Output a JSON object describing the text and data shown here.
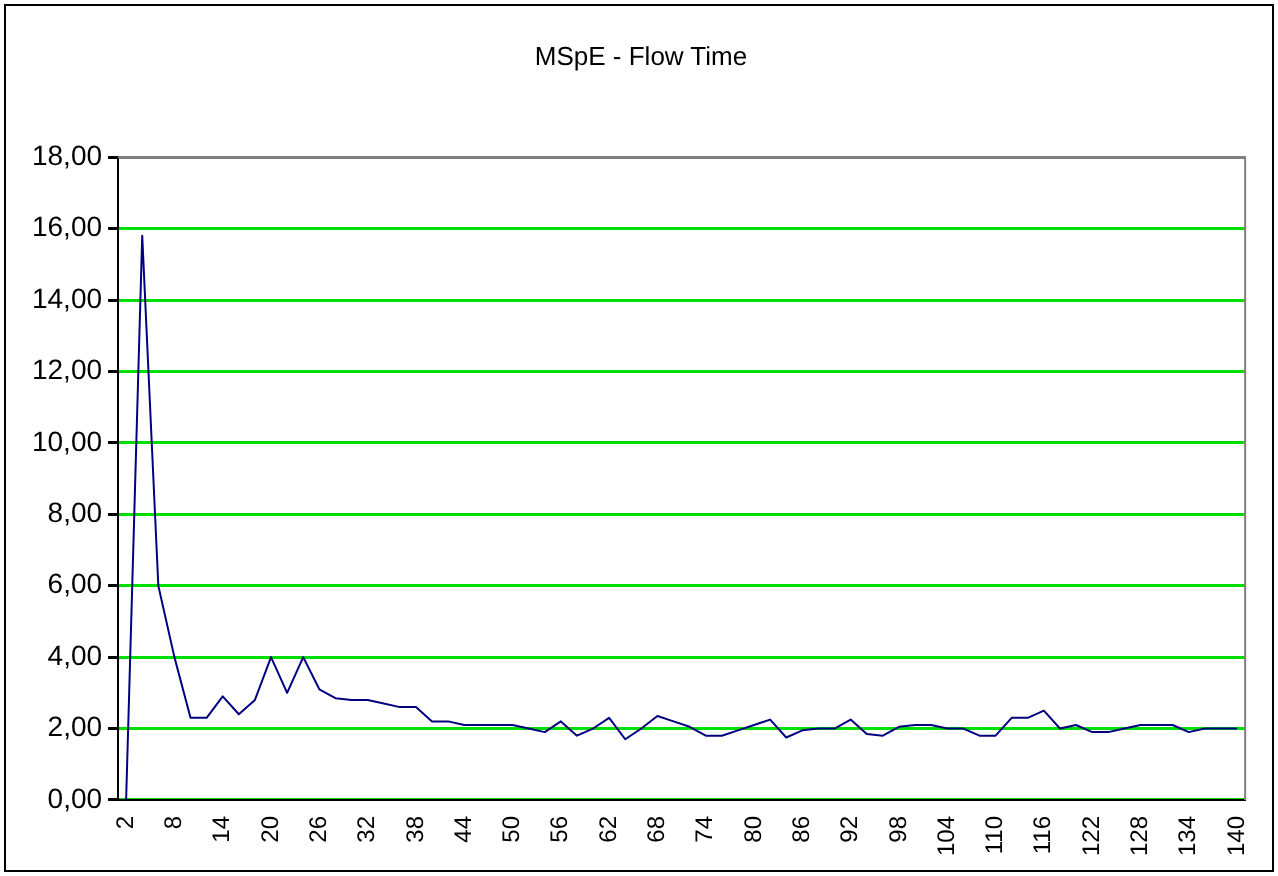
{
  "chart_data": {
    "type": "line",
    "title": "MSpE - Flow Time",
    "categories": [
      "2",
      null,
      null,
      "8",
      null,
      null,
      "14",
      null,
      null,
      "20",
      null,
      null,
      "26",
      null,
      null,
      "32",
      null,
      null,
      "38",
      null,
      null,
      "44",
      null,
      null,
      "50",
      null,
      null,
      "56",
      null,
      null,
      "62",
      null,
      null,
      "68",
      null,
      null,
      "74",
      null,
      null,
      "80",
      null,
      null,
      "86",
      null,
      null,
      "92",
      null,
      null,
      "98",
      null,
      null,
      "104",
      null,
      null,
      "110",
      null,
      null,
      "116",
      null,
      null,
      "122",
      null,
      null,
      "128",
      null,
      null,
      "134",
      null,
      null,
      "140"
    ],
    "series": [
      {
        "color": "#000080",
        "values": [
          0,
          15.8,
          6.0,
          4.0,
          2.3,
          2.3,
          2.9,
          2.4,
          2.8,
          4.0,
          3.0,
          4.0,
          3.1,
          2.85,
          2.8,
          2.8,
          2.7,
          2.6,
          2.6,
          2.2,
          2.2,
          2.1,
          2.1,
          2.1,
          2.1,
          2.0,
          1.9,
          2.2,
          1.8,
          2.0,
          2.3,
          1.7,
          2.0,
          2.35,
          2.2,
          2.05,
          1.8,
          1.8,
          1.95,
          2.1,
          2.25,
          1.75,
          1.95,
          2.0,
          2.0,
          2.25,
          1.85,
          1.8,
          2.05,
          2.1,
          2.1,
          2.0,
          2.0,
          1.8,
          1.8,
          2.3,
          2.3,
          2.5,
          2.0,
          2.1,
          1.9,
          1.9,
          2.0,
          2.1,
          2.1,
          2.1,
          1.9,
          2.0,
          2.0,
          2.0
        ]
      }
    ],
    "ylim": [
      0,
      18
    ],
    "yticks": [
      {
        "value": 0,
        "label": "0,00"
      },
      {
        "value": 2,
        "label": "2,00"
      },
      {
        "value": 4,
        "label": "4,00"
      },
      {
        "value": 6,
        "label": "6,00"
      },
      {
        "value": 8,
        "label": "8,00"
      },
      {
        "value": 10,
        "label": "10,00"
      },
      {
        "value": 12,
        "label": "12,00"
      },
      {
        "value": 14,
        "label": "14,00"
      },
      {
        "value": 16,
        "label": "16,00"
      },
      {
        "value": 18,
        "label": "18,00"
      }
    ],
    "grid": "y",
    "legend": false,
    "marker": "none",
    "line_style": "solid"
  }
}
